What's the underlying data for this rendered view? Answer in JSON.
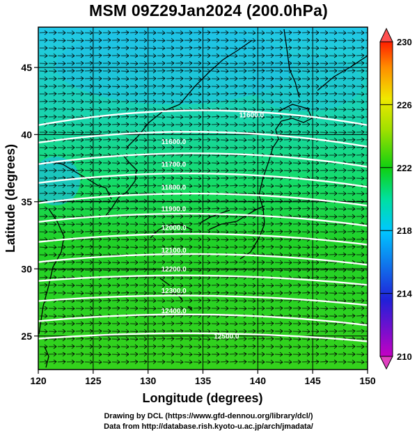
{
  "title": "MSM 09Z29Jan2024 (200.0hPa)",
  "map": {
    "xlabel": "Longitude (degrees)",
    "ylabel": "Latitude  (degrees)",
    "x_range": [
      120,
      150
    ],
    "y_range": [
      22.5,
      48
    ],
    "x_ticks": [
      120,
      125,
      130,
      135,
      140,
      145,
      150
    ],
    "x_tick_labels": [
      "120",
      "125",
      "130",
      "135",
      "140",
      "145",
      "150"
    ],
    "y_ticks": [
      25,
      30,
      35,
      40,
      45
    ],
    "y_tick_labels": [
      "25",
      "30",
      "35",
      "40",
      "45"
    ],
    "grid": true,
    "field": "temperature (shaded)",
    "contours": [
      {
        "label": "11600.0",
        "lat_at_120": 40.7,
        "lat_at_135": 41.8,
        "lat_at_150": 40.7
      },
      {
        "label": "11600.0",
        "lat_at_120": 39.4,
        "lat_at_135": 40.2,
        "lat_at_150": 39.1
      },
      {
        "label": "11700.0",
        "lat_at_120": 37.8,
        "lat_at_135": 38.6,
        "lat_at_150": 37.6
      },
      {
        "label": "11800.0",
        "lat_at_120": 36.4,
        "lat_at_135": 37.1,
        "lat_at_150": 36.1
      },
      {
        "label": "11900.0",
        "lat_at_120": 34.9,
        "lat_at_135": 35.6,
        "lat_at_150": 34.7
      },
      {
        "label": "12000.0",
        "lat_at_120": 33.5,
        "lat_at_135": 34.1,
        "lat_at_150": 33.2
      },
      {
        "label": "12100.0",
        "lat_at_120": 32.0,
        "lat_at_135": 32.6,
        "lat_at_150": 31.8
      },
      {
        "label": "12200.0",
        "lat_at_120": 30.5,
        "lat_at_135": 31.1,
        "lat_at_150": 30.3
      },
      {
        "label": "12300.0",
        "lat_at_120": 29.1,
        "lat_at_135": 29.5,
        "lat_at_150": 28.8
      },
      {
        "label": "12400.0",
        "lat_at_120": 27.6,
        "lat_at_135": 28.0,
        "lat_at_150": 27.3
      },
      {
        "label": "12400.0",
        "lat_at_120": 26.1,
        "lat_at_135": 26.6,
        "lat_at_150": 25.8
      },
      {
        "label": "12500.0",
        "lat_at_120": 24.8,
        "lat_at_135": 25.2,
        "lat_at_150": 24.6
      }
    ],
    "contour_labels": [
      {
        "text": "11600.0",
        "lon": 138.3,
        "lat": 41.3
      },
      {
        "text": "11600.0",
        "lon": 131.2,
        "lat": 39.3
      },
      {
        "text": "11700.0",
        "lon": 131.2,
        "lat": 37.6
      },
      {
        "text": "11800.0",
        "lon": 131.2,
        "lat": 35.9
      },
      {
        "text": "11900.0",
        "lon": 131.2,
        "lat": 34.3
      },
      {
        "text": "12000.0",
        "lon": 131.2,
        "lat": 32.9
      },
      {
        "text": "12100.0",
        "lon": 131.2,
        "lat": 31.2
      },
      {
        "text": "12200.0",
        "lon": 131.2,
        "lat": 29.8
      },
      {
        "text": "12300.0",
        "lon": 131.2,
        "lat": 28.2
      },
      {
        "text": "12400.0",
        "lon": 131.2,
        "lat": 26.7
      },
      {
        "text": "12500.0",
        "lon": 136.0,
        "lat": 24.8
      }
    ],
    "wind_direction": "westerly"
  },
  "colorbar": {
    "min": 210,
    "max": 230,
    "ticks": [
      210,
      214,
      218,
      222,
      226,
      230
    ],
    "tick_labels": [
      "210",
      "214",
      "218",
      "222",
      "226",
      "230"
    ],
    "colors": [
      "#c400c4",
      "#2020d8",
      "#00c8ff",
      "#00d890",
      "#18d200",
      "#e8e800",
      "#ff9000",
      "#ff2000"
    ]
  },
  "credits": {
    "line1": "Drawing by DCL (https://www.gfd-dennou.org/library/dcl/)",
    "line2": "Data from http://database.rish.kyoto-u.ac.jp/arch/jmadata/"
  }
}
